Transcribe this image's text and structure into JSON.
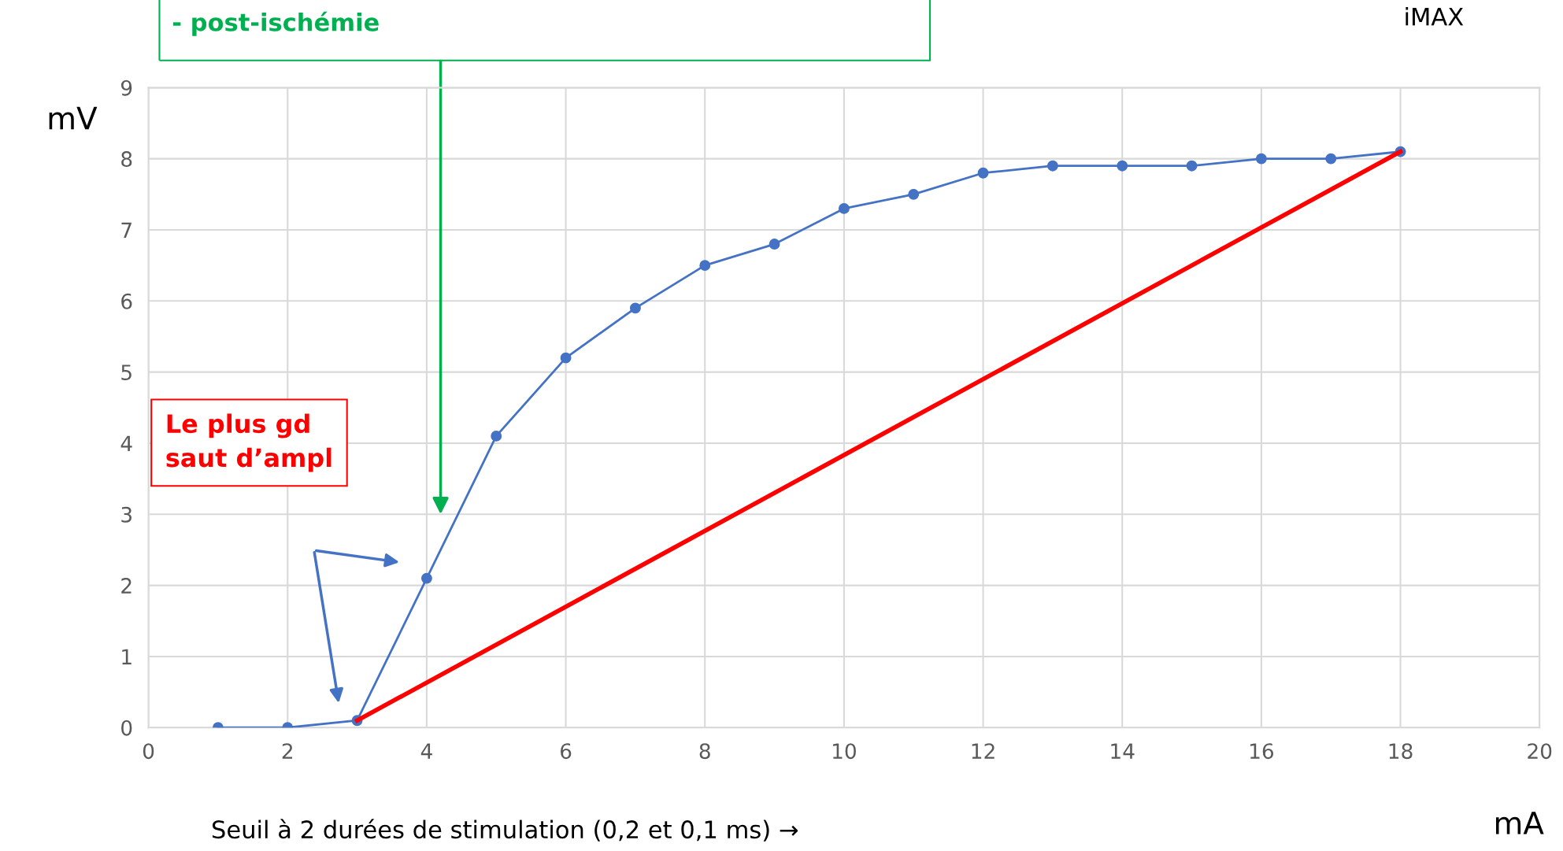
{
  "chart_data": {
    "type": "line",
    "xlabel": "mA",
    "ylabel": "mV",
    "x": [
      1,
      2,
      3,
      4,
      5,
      6,
      7,
      8,
      9,
      10,
      11,
      12,
      13,
      14,
      15,
      16,
      17,
      18
    ],
    "series": [
      {
        "color": "#4472c4",
        "marker": "circle",
        "values": [
          0,
          0,
          0.1,
          2.1,
          4.1,
          5.2,
          5.9,
          6.5,
          6.8,
          7.3,
          7.5,
          7.8,
          7.9,
          7.9,
          7.9,
          8.0,
          8.0,
          8.1
        ]
      },
      {
        "color": "#ff0000",
        "marker": "none",
        "x": [
          3,
          18
        ],
        "values": [
          0.1,
          8.1
        ]
      }
    ],
    "xlim": [
      0,
      20
    ],
    "xticks": [
      0,
      2,
      4,
      6,
      8,
      10,
      12,
      14,
      16,
      18,
      20
    ],
    "ylim": [
      0,
      9
    ],
    "yticks": [
      0,
      1,
      2,
      3,
      4,
      5,
      6,
      7,
      8,
      9
    ],
    "grid": true,
    "legend": false,
    "annotations": [
      "- post-ischémie",
      "iMAX",
      "Le plus gd\nsaut d’ampl",
      "Seuil à 2 durées de stimulation (0,2 et 0,1 ms) →"
    ]
  }
}
